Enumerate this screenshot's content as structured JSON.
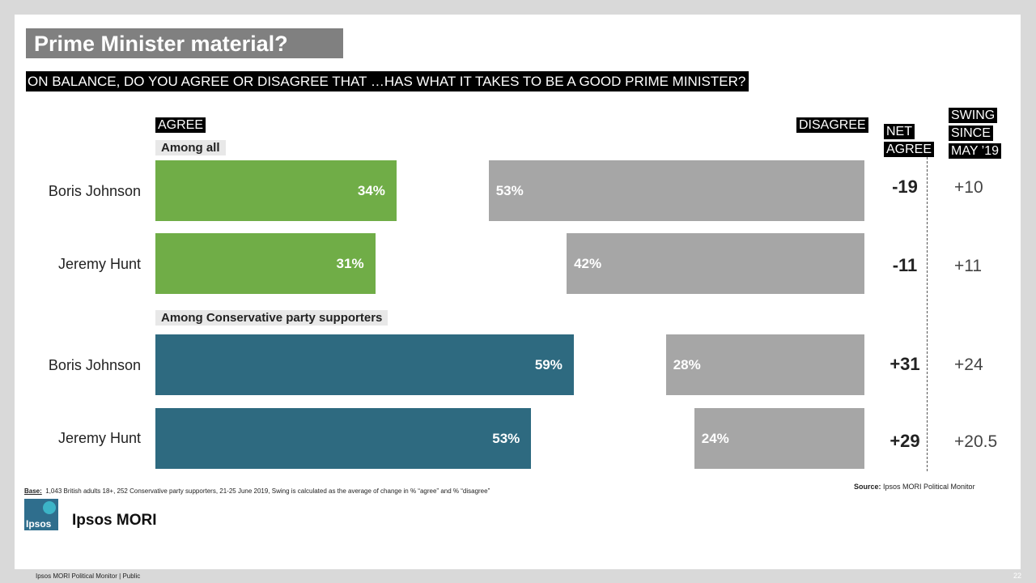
{
  "title": "Prime Minister material?",
  "question": "ON BALANCE, DO YOU AGREE OR DISAGREE THAT …HAS WHAT IT TAKES TO BE A GOOD PRIME MINISTER?",
  "headers": {
    "agree": "AGREE",
    "disagree": "DISAGREE",
    "net_line1": "NET",
    "net_line2": "AGREE",
    "swing_line1": "SWING",
    "swing_line2": "SINCE",
    "swing_line3": "MAY ’19"
  },
  "colors": {
    "agree_all": "#70ad47",
    "agree_con": "#2e6a80",
    "disagree": "#a6a6a6"
  },
  "chart_data": {
    "type": "bar",
    "orientation": "horizontal-diverging",
    "groups": [
      {
        "label": "Among all",
        "rows": [
          {
            "name": "Boris Johnson",
            "agree": 34,
            "agree_label": "34%",
            "disagree": 53,
            "disagree_label": "53%",
            "net": "-19",
            "swing": "+10"
          },
          {
            "name": "Jeremy Hunt",
            "agree": 31,
            "agree_label": "31%",
            "disagree": 42,
            "disagree_label": "42%",
            "net": "-11",
            "swing": "+11"
          }
        ]
      },
      {
        "label": "Among Conservative party supporters",
        "rows": [
          {
            "name": "Boris Johnson",
            "agree": 59,
            "agree_label": "59%",
            "disagree": 28,
            "disagree_label": "28%",
            "net": "+31",
            "swing": "+24"
          },
          {
            "name": "Jeremy Hunt",
            "agree": 53,
            "agree_label": "53%",
            "disagree": 24,
            "disagree_label": "24%",
            "net": "+29",
            "swing": "+20.5"
          }
        ]
      }
    ]
  },
  "base_label": "Base:",
  "base_text": "1,043 British adults 18+, 252 Conservative party supporters, 21-25 June 2019, Swing is calculated as the average of change in % “agree” and % “disagree”",
  "source_label": "Source:",
  "source_text": "Ipsos MORI Political Monitor",
  "logo_text": "Ipsos",
  "brand": "Ipsos MORI",
  "footer": "Ipsos MORI Political Monitor | Public",
  "page_number": "22"
}
